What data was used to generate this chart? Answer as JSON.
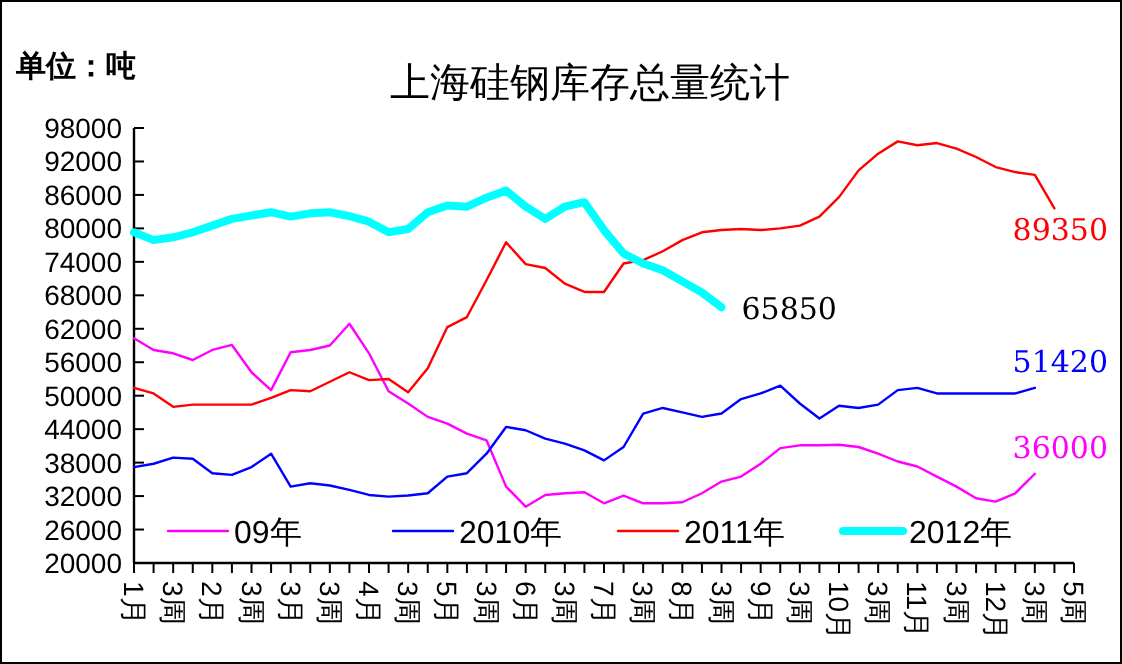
{
  "chart_data": {
    "type": "line",
    "title": "上海硅钢库存总量统计",
    "categories": [
      "1月",
      null,
      "3周",
      null,
      "2月",
      null,
      "3周",
      null,
      "3月",
      null,
      "3周",
      null,
      "4月",
      null,
      "3周",
      null,
      "5月",
      null,
      "3周",
      null,
      "6月",
      null,
      "3周",
      null,
      "7月",
      null,
      "3周",
      null,
      "8月",
      null,
      "3周",
      null,
      "9月",
      null,
      "3周",
      null,
      "10月",
      null,
      "3周",
      null,
      "11月",
      null,
      "3周",
      null,
      "12月",
      null,
      "3周",
      null,
      "5周"
    ],
    "series": [
      {
        "name": "09年",
        "color": "#ff00ff",
        "values": [
          60300,
          58200,
          57600,
          56400,
          58200,
          59100,
          54200,
          51000,
          57800,
          58200,
          59000,
          62900,
          57600,
          50800,
          48600,
          46200,
          45000,
          43200,
          42000,
          33700,
          30100,
          32200,
          32500,
          32700,
          30700,
          32100,
          30700,
          30700,
          30900,
          32500,
          34600,
          35500,
          37800,
          40600,
          41100,
          41100,
          41200,
          40800,
          39600,
          38200,
          37300,
          35500,
          33700,
          31600,
          31000,
          32500,
          36000,
          null,
          null
        ]
      },
      {
        "name": "2010年",
        "color": "#0000ff",
        "values": [
          37200,
          37800,
          38900,
          38700,
          36100,
          35800,
          37200,
          39600,
          33700,
          34300,
          33900,
          33100,
          32200,
          31900,
          32100,
          32500,
          35500,
          36100,
          39600,
          44400,
          43800,
          42300,
          41400,
          40200,
          38400,
          40800,
          46800,
          47800,
          47000,
          46200,
          46800,
          49400,
          50400,
          51800,
          48600,
          45900,
          48200,
          47800,
          48400,
          51000,
          51400,
          50400,
          50400,
          50400,
          50400,
          50400,
          51420,
          null,
          null
        ]
      },
      {
        "name": "2011年",
        "color": "#ff0000",
        "values": [
          51400,
          50400,
          48000,
          48400,
          48400,
          48400,
          48400,
          49600,
          51000,
          50800,
          52500,
          54200,
          52800,
          53000,
          50600,
          54900,
          62300,
          64100,
          70700,
          77500,
          73600,
          72900,
          70100,
          68600,
          68600,
          73700,
          74300,
          75900,
          77900,
          79300,
          79700,
          79900,
          79700,
          80000,
          80500,
          82100,
          85600,
          90400,
          93400,
          95600,
          94900,
          95300,
          94300,
          92800,
          91000,
          90100,
          89600,
          83600,
          null
        ]
      },
      {
        "name": "2012年",
        "color": "#00ffff",
        "values": [
          79300,
          77900,
          78400,
          79300,
          80500,
          81700,
          82300,
          82900,
          82100,
          82700,
          82900,
          82200,
          81200,
          79300,
          79900,
          82900,
          84100,
          83900,
          85500,
          86800,
          83900,
          81700,
          83900,
          84700,
          79700,
          75500,
          73700,
          72500,
          70500,
          68500,
          65850,
          null,
          null,
          null,
          null,
          null,
          null,
          null,
          null,
          null,
          null,
          null,
          null,
          null,
          null,
          null,
          null,
          null,
          null
        ]
      }
    ],
    "ylim": [
      20000,
      98000
    ],
    "yticks": [
      20000,
      26000,
      32000,
      38000,
      44000,
      50000,
      56000,
      62000,
      68000,
      74000,
      80000,
      86000,
      92000,
      98000
    ],
    "legend": "bottom",
    "annotations": [
      "单位：吨",
      "36000",
      "51420",
      "89350",
      "65850"
    ]
  }
}
